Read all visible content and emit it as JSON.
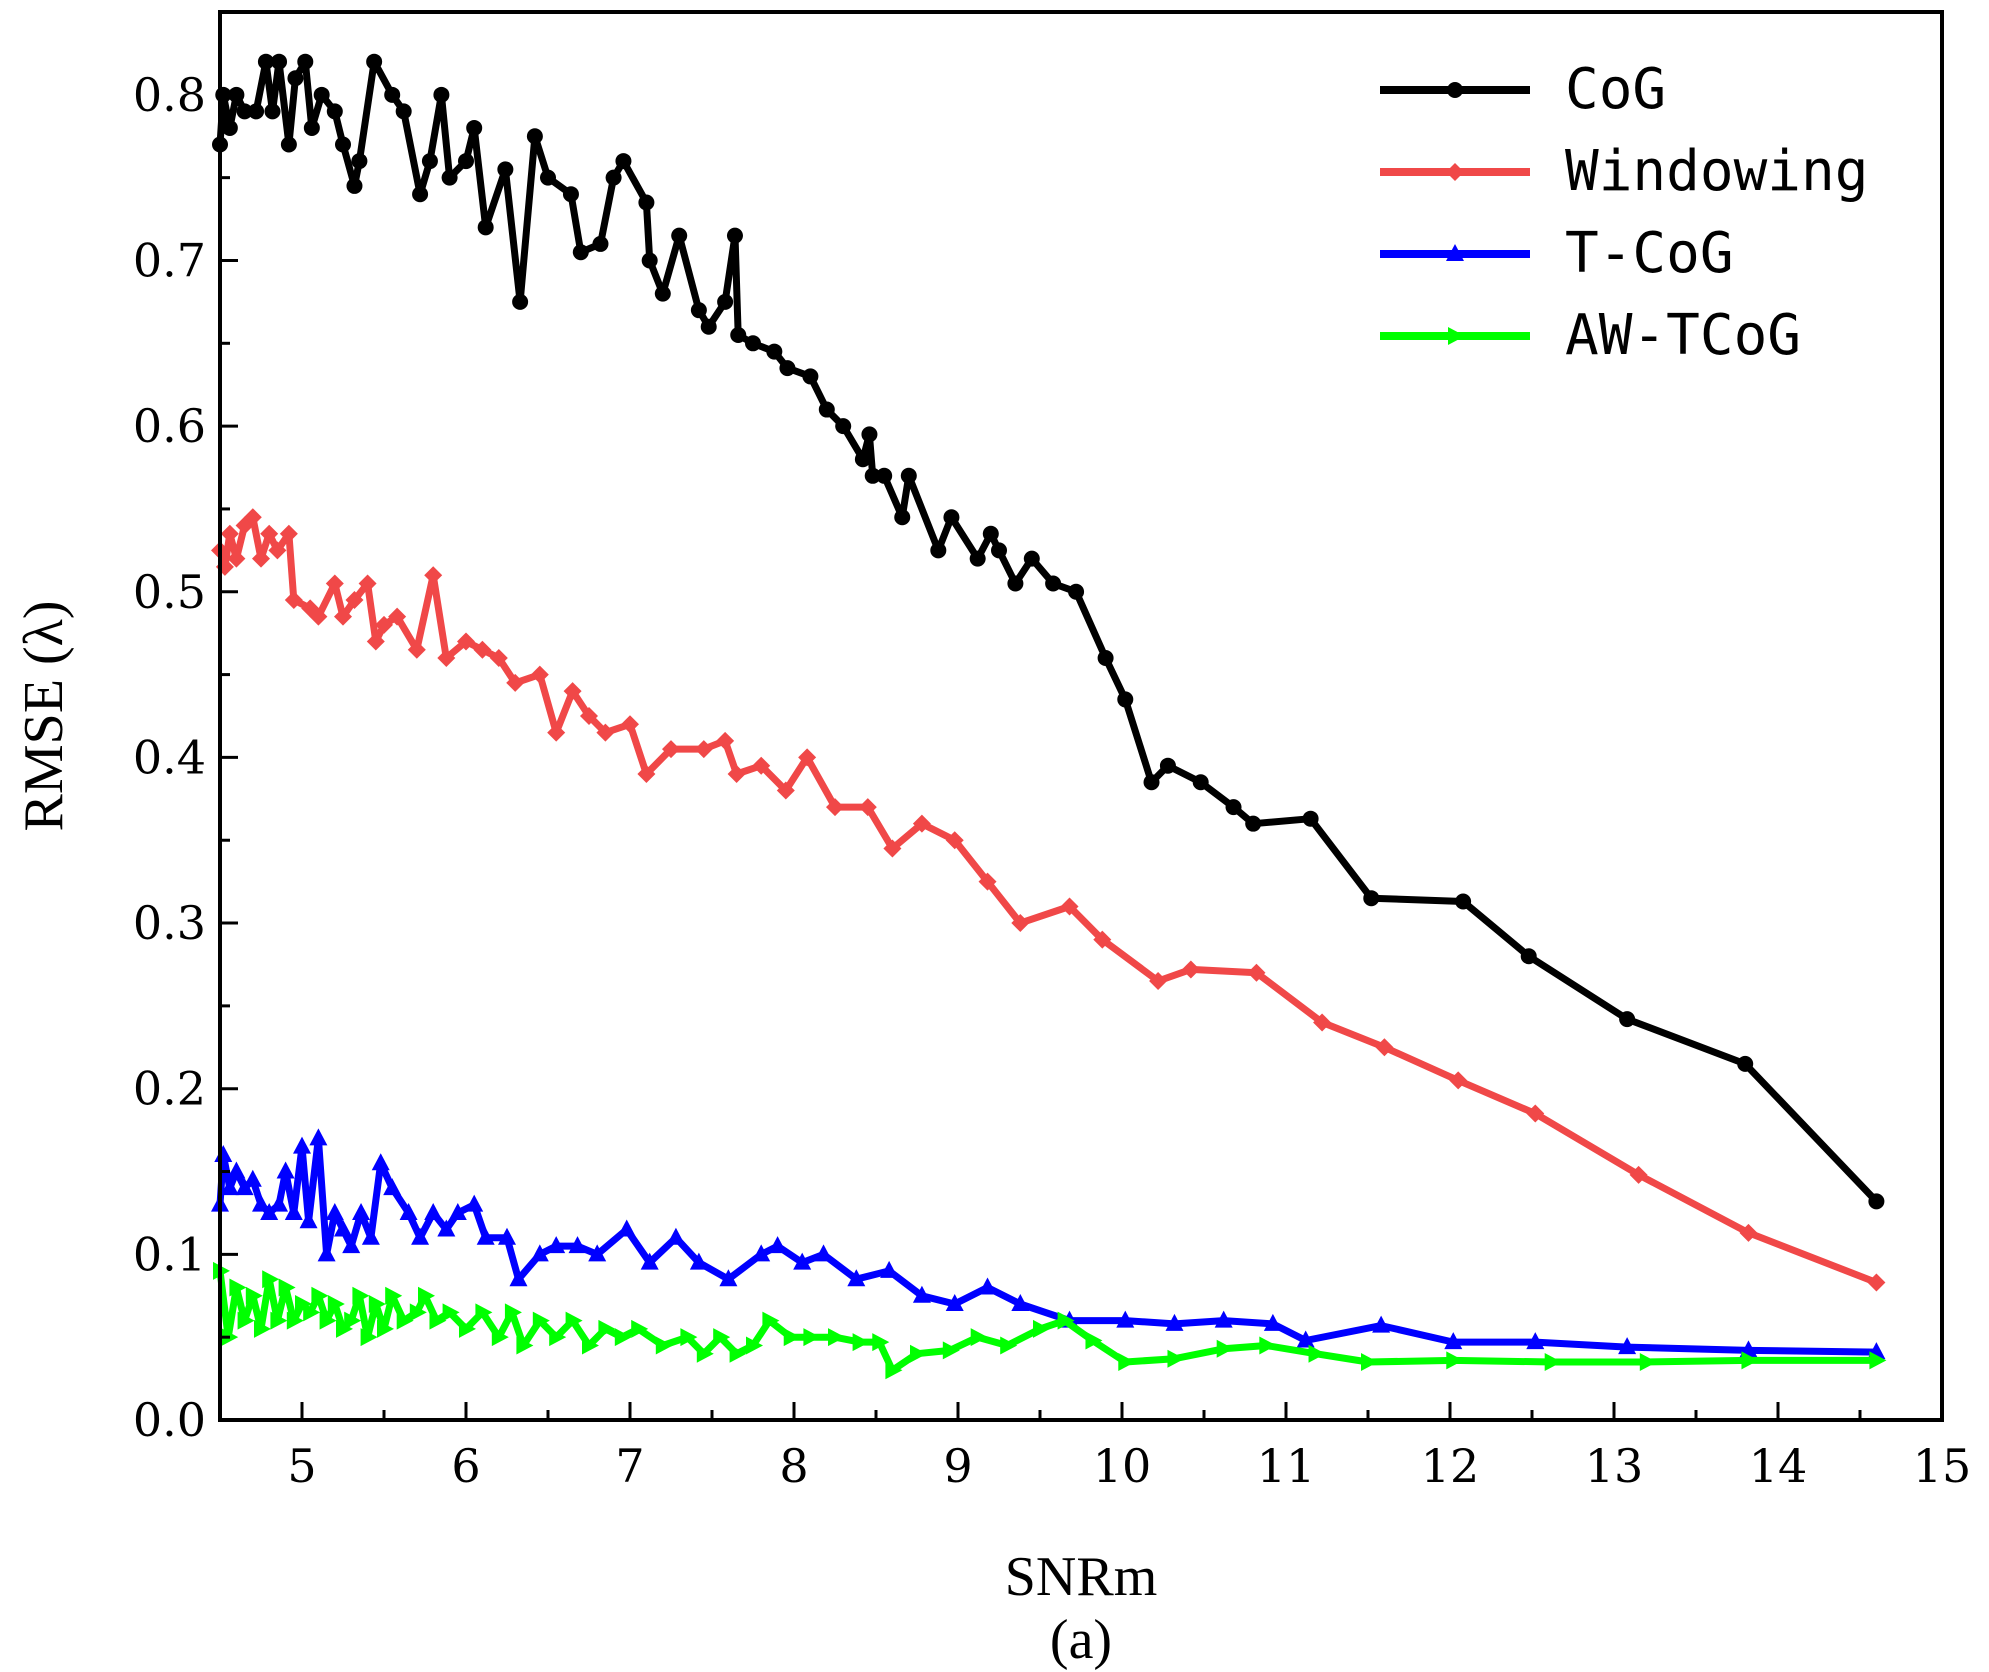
{
  "chart_data": {
    "type": "line",
    "title": "",
    "subtitle": "(a)",
    "xlabel": "SNRm",
    "ylabel": "RMSE (λ)",
    "xlim": [
      4.5,
      15
    ],
    "ylim": [
      0.0,
      0.85
    ],
    "xticks": [
      "5",
      "6",
      "7",
      "8",
      "9",
      "10",
      "11",
      "12",
      "13",
      "14",
      "15"
    ],
    "yticks": [
      "0.0",
      "0.1",
      "0.2",
      "0.3",
      "0.4",
      "0.5",
      "0.6",
      "0.7",
      "0.8"
    ],
    "grid": false,
    "legend_position": "top-right",
    "series": [
      {
        "name": "CoG",
        "color": "#000000",
        "marker": "circle",
        "points": [
          [
            4.5,
            0.77
          ],
          [
            4.52,
            0.8
          ],
          [
            4.56,
            0.78
          ],
          [
            4.6,
            0.8
          ],
          [
            4.65,
            0.79
          ],
          [
            4.72,
            0.79
          ],
          [
            4.78,
            0.82
          ],
          [
            4.82,
            0.79
          ],
          [
            4.86,
            0.82
          ],
          [
            4.92,
            0.77
          ],
          [
            4.96,
            0.81
          ],
          [
            5.02,
            0.82
          ],
          [
            5.06,
            0.78
          ],
          [
            5.12,
            0.8
          ],
          [
            5.2,
            0.79
          ],
          [
            5.25,
            0.77
          ],
          [
            5.32,
            0.745
          ],
          [
            5.35,
            0.76
          ],
          [
            5.44,
            0.82
          ],
          [
            5.55,
            0.8
          ],
          [
            5.62,
            0.79
          ],
          [
            5.72,
            0.74
          ],
          [
            5.78,
            0.76
          ],
          [
            5.85,
            0.8
          ],
          [
            5.9,
            0.75
          ],
          [
            6.0,
            0.76
          ],
          [
            6.05,
            0.78
          ],
          [
            6.12,
            0.72
          ],
          [
            6.24,
            0.755
          ],
          [
            6.33,
            0.675
          ],
          [
            6.42,
            0.775
          ],
          [
            6.5,
            0.75
          ],
          [
            6.64,
            0.74
          ],
          [
            6.7,
            0.705
          ],
          [
            6.82,
            0.71
          ],
          [
            6.9,
            0.75
          ],
          [
            6.96,
            0.76
          ],
          [
            7.1,
            0.735
          ],
          [
            7.12,
            0.7
          ],
          [
            7.2,
            0.68
          ],
          [
            7.3,
            0.715
          ],
          [
            7.42,
            0.67
          ],
          [
            7.48,
            0.66
          ],
          [
            7.58,
            0.675
          ],
          [
            7.64,
            0.715
          ],
          [
            7.66,
            0.655
          ],
          [
            7.75,
            0.65
          ],
          [
            7.88,
            0.645
          ],
          [
            7.96,
            0.635
          ],
          [
            8.1,
            0.63
          ],
          [
            8.2,
            0.61
          ],
          [
            8.3,
            0.6
          ],
          [
            8.42,
            0.58
          ],
          [
            8.46,
            0.595
          ],
          [
            8.48,
            0.57
          ],
          [
            8.55,
            0.57
          ],
          [
            8.66,
            0.545
          ],
          [
            8.7,
            0.57
          ],
          [
            8.88,
            0.525
          ],
          [
            8.96,
            0.545
          ],
          [
            9.12,
            0.52
          ],
          [
            9.2,
            0.535
          ],
          [
            9.25,
            0.525
          ],
          [
            9.35,
            0.505
          ],
          [
            9.45,
            0.52
          ],
          [
            9.58,
            0.505
          ],
          [
            9.72,
            0.5
          ],
          [
            9.9,
            0.46
          ],
          [
            10.02,
            0.435
          ],
          [
            10.18,
            0.385
          ],
          [
            10.28,
            0.395
          ],
          [
            10.48,
            0.385
          ],
          [
            10.68,
            0.37
          ],
          [
            10.8,
            0.36
          ],
          [
            11.15,
            0.363
          ],
          [
            11.52,
            0.315
          ],
          [
            12.08,
            0.313
          ],
          [
            12.48,
            0.28
          ],
          [
            13.08,
            0.242
          ],
          [
            13.8,
            0.215
          ],
          [
            14.6,
            0.132
          ]
        ]
      },
      {
        "name": "Windowing",
        "color": "#f04848",
        "marker": "diamond",
        "points": [
          [
            4.5,
            0.525
          ],
          [
            4.53,
            0.515
          ],
          [
            4.56,
            0.535
          ],
          [
            4.6,
            0.52
          ],
          [
            4.65,
            0.54
          ],
          [
            4.7,
            0.545
          ],
          [
            4.75,
            0.52
          ],
          [
            4.8,
            0.535
          ],
          [
            4.85,
            0.525
          ],
          [
            4.92,
            0.535
          ],
          [
            4.95,
            0.495
          ],
          [
            5.05,
            0.49
          ],
          [
            5.1,
            0.485
          ],
          [
            5.2,
            0.505
          ],
          [
            5.25,
            0.485
          ],
          [
            5.32,
            0.495
          ],
          [
            5.4,
            0.505
          ],
          [
            5.45,
            0.47
          ],
          [
            5.5,
            0.48
          ],
          [
            5.58,
            0.485
          ],
          [
            5.7,
            0.465
          ],
          [
            5.8,
            0.51
          ],
          [
            5.88,
            0.46
          ],
          [
            6.0,
            0.47
          ],
          [
            6.1,
            0.465
          ],
          [
            6.2,
            0.46
          ],
          [
            6.3,
            0.445
          ],
          [
            6.45,
            0.45
          ],
          [
            6.55,
            0.415
          ],
          [
            6.65,
            0.44
          ],
          [
            6.75,
            0.425
          ],
          [
            6.85,
            0.415
          ],
          [
            7.0,
            0.42
          ],
          [
            7.1,
            0.39
          ],
          [
            7.25,
            0.405
          ],
          [
            7.45,
            0.405
          ],
          [
            7.58,
            0.41
          ],
          [
            7.65,
            0.39
          ],
          [
            7.8,
            0.395
          ],
          [
            7.95,
            0.38
          ],
          [
            8.08,
            0.4
          ],
          [
            8.25,
            0.37
          ],
          [
            8.45,
            0.37
          ],
          [
            8.6,
            0.345
          ],
          [
            8.78,
            0.36
          ],
          [
            8.98,
            0.35
          ],
          [
            9.18,
            0.325
          ],
          [
            9.38,
            0.3
          ],
          [
            9.68,
            0.31
          ],
          [
            9.88,
            0.29
          ],
          [
            10.22,
            0.265
          ],
          [
            10.42,
            0.272
          ],
          [
            10.82,
            0.27
          ],
          [
            11.22,
            0.24
          ],
          [
            11.6,
            0.225
          ],
          [
            12.05,
            0.205
          ],
          [
            12.52,
            0.185
          ],
          [
            13.15,
            0.148
          ],
          [
            13.82,
            0.113
          ],
          [
            14.6,
            0.083
          ]
        ]
      },
      {
        "name": "T-CoG",
        "color": "#0000ff",
        "marker": "triangle-up",
        "points": [
          [
            4.5,
            0.13
          ],
          [
            4.52,
            0.16
          ],
          [
            4.56,
            0.14
          ],
          [
            4.6,
            0.15
          ],
          [
            4.65,
            0.14
          ],
          [
            4.7,
            0.145
          ],
          [
            4.75,
            0.13
          ],
          [
            4.8,
            0.125
          ],
          [
            4.86,
            0.13
          ],
          [
            4.9,
            0.15
          ],
          [
            4.95,
            0.125
          ],
          [
            5.0,
            0.165
          ],
          [
            5.04,
            0.12
          ],
          [
            5.1,
            0.17
          ],
          [
            5.15,
            0.1
          ],
          [
            5.2,
            0.125
          ],
          [
            5.25,
            0.115
          ],
          [
            5.3,
            0.105
          ],
          [
            5.36,
            0.125
          ],
          [
            5.42,
            0.11
          ],
          [
            5.48,
            0.155
          ],
          [
            5.55,
            0.14
          ],
          [
            5.65,
            0.125
          ],
          [
            5.72,
            0.11
          ],
          [
            5.8,
            0.125
          ],
          [
            5.88,
            0.115
          ],
          [
            5.95,
            0.125
          ],
          [
            6.05,
            0.13
          ],
          [
            6.12,
            0.11
          ],
          [
            6.25,
            0.11
          ],
          [
            6.32,
            0.085
          ],
          [
            6.45,
            0.1
          ],
          [
            6.55,
            0.105
          ],
          [
            6.68,
            0.105
          ],
          [
            6.8,
            0.1
          ],
          [
            6.98,
            0.115
          ],
          [
            7.12,
            0.095
          ],
          [
            7.28,
            0.11
          ],
          [
            7.42,
            0.095
          ],
          [
            7.6,
            0.085
          ],
          [
            7.8,
            0.1
          ],
          [
            7.9,
            0.105
          ],
          [
            8.05,
            0.095
          ],
          [
            8.18,
            0.1
          ],
          [
            8.38,
            0.085
          ],
          [
            8.58,
            0.09
          ],
          [
            8.78,
            0.075
          ],
          [
            8.98,
            0.07
          ],
          [
            9.18,
            0.08
          ],
          [
            9.38,
            0.07
          ],
          [
            9.68,
            0.06
          ],
          [
            10.02,
            0.06
          ],
          [
            10.32,
            0.058
          ],
          [
            10.62,
            0.06
          ],
          [
            10.92,
            0.058
          ],
          [
            11.12,
            0.048
          ],
          [
            11.58,
            0.057
          ],
          [
            12.02,
            0.047
          ],
          [
            12.52,
            0.047
          ],
          [
            13.08,
            0.044
          ],
          [
            13.82,
            0.042
          ],
          [
            14.6,
            0.041
          ]
        ]
      },
      {
        "name": "AW-TCoG",
        "color": "#00ff00",
        "marker": "triangle-right",
        "points": [
          [
            4.5,
            0.09
          ],
          [
            4.55,
            0.05
          ],
          [
            4.6,
            0.08
          ],
          [
            4.65,
            0.06
          ],
          [
            4.7,
            0.075
          ],
          [
            4.75,
            0.055
          ],
          [
            4.8,
            0.085
          ],
          [
            4.85,
            0.06
          ],
          [
            4.9,
            0.08
          ],
          [
            4.95,
            0.06
          ],
          [
            5.0,
            0.07
          ],
          [
            5.05,
            0.065
          ],
          [
            5.1,
            0.075
          ],
          [
            5.15,
            0.06
          ],
          [
            5.2,
            0.07
          ],
          [
            5.25,
            0.055
          ],
          [
            5.3,
            0.06
          ],
          [
            5.35,
            0.075
          ],
          [
            5.4,
            0.05
          ],
          [
            5.45,
            0.07
          ],
          [
            5.5,
            0.055
          ],
          [
            5.55,
            0.075
          ],
          [
            5.62,
            0.06
          ],
          [
            5.7,
            0.065
          ],
          [
            5.75,
            0.075
          ],
          [
            5.82,
            0.06
          ],
          [
            5.9,
            0.065
          ],
          [
            6.0,
            0.055
          ],
          [
            6.1,
            0.065
          ],
          [
            6.2,
            0.05
          ],
          [
            6.28,
            0.065
          ],
          [
            6.35,
            0.045
          ],
          [
            6.45,
            0.06
          ],
          [
            6.55,
            0.05
          ],
          [
            6.65,
            0.06
          ],
          [
            6.75,
            0.045
          ],
          [
            6.85,
            0.055
          ],
          [
            6.95,
            0.05
          ],
          [
            7.05,
            0.055
          ],
          [
            7.2,
            0.045
          ],
          [
            7.35,
            0.05
          ],
          [
            7.45,
            0.04
          ],
          [
            7.55,
            0.05
          ],
          [
            7.65,
            0.04
          ],
          [
            7.75,
            0.045
          ],
          [
            7.85,
            0.06
          ],
          [
            7.98,
            0.05
          ],
          [
            8.1,
            0.05
          ],
          [
            8.25,
            0.05
          ],
          [
            8.4,
            0.047
          ],
          [
            8.52,
            0.047
          ],
          [
            8.6,
            0.03
          ],
          [
            8.75,
            0.04
          ],
          [
            8.95,
            0.042
          ],
          [
            9.12,
            0.05
          ],
          [
            9.3,
            0.045
          ],
          [
            9.5,
            0.055
          ],
          [
            9.65,
            0.06
          ],
          [
            9.82,
            0.048
          ],
          [
            10.02,
            0.035
          ],
          [
            10.32,
            0.037
          ],
          [
            10.62,
            0.043
          ],
          [
            10.88,
            0.045
          ],
          [
            11.18,
            0.04
          ],
          [
            11.5,
            0.035
          ],
          [
            12.02,
            0.036
          ],
          [
            12.62,
            0.035
          ],
          [
            13.2,
            0.035
          ],
          [
            13.82,
            0.036
          ],
          [
            14.6,
            0.036
          ]
        ]
      }
    ]
  }
}
